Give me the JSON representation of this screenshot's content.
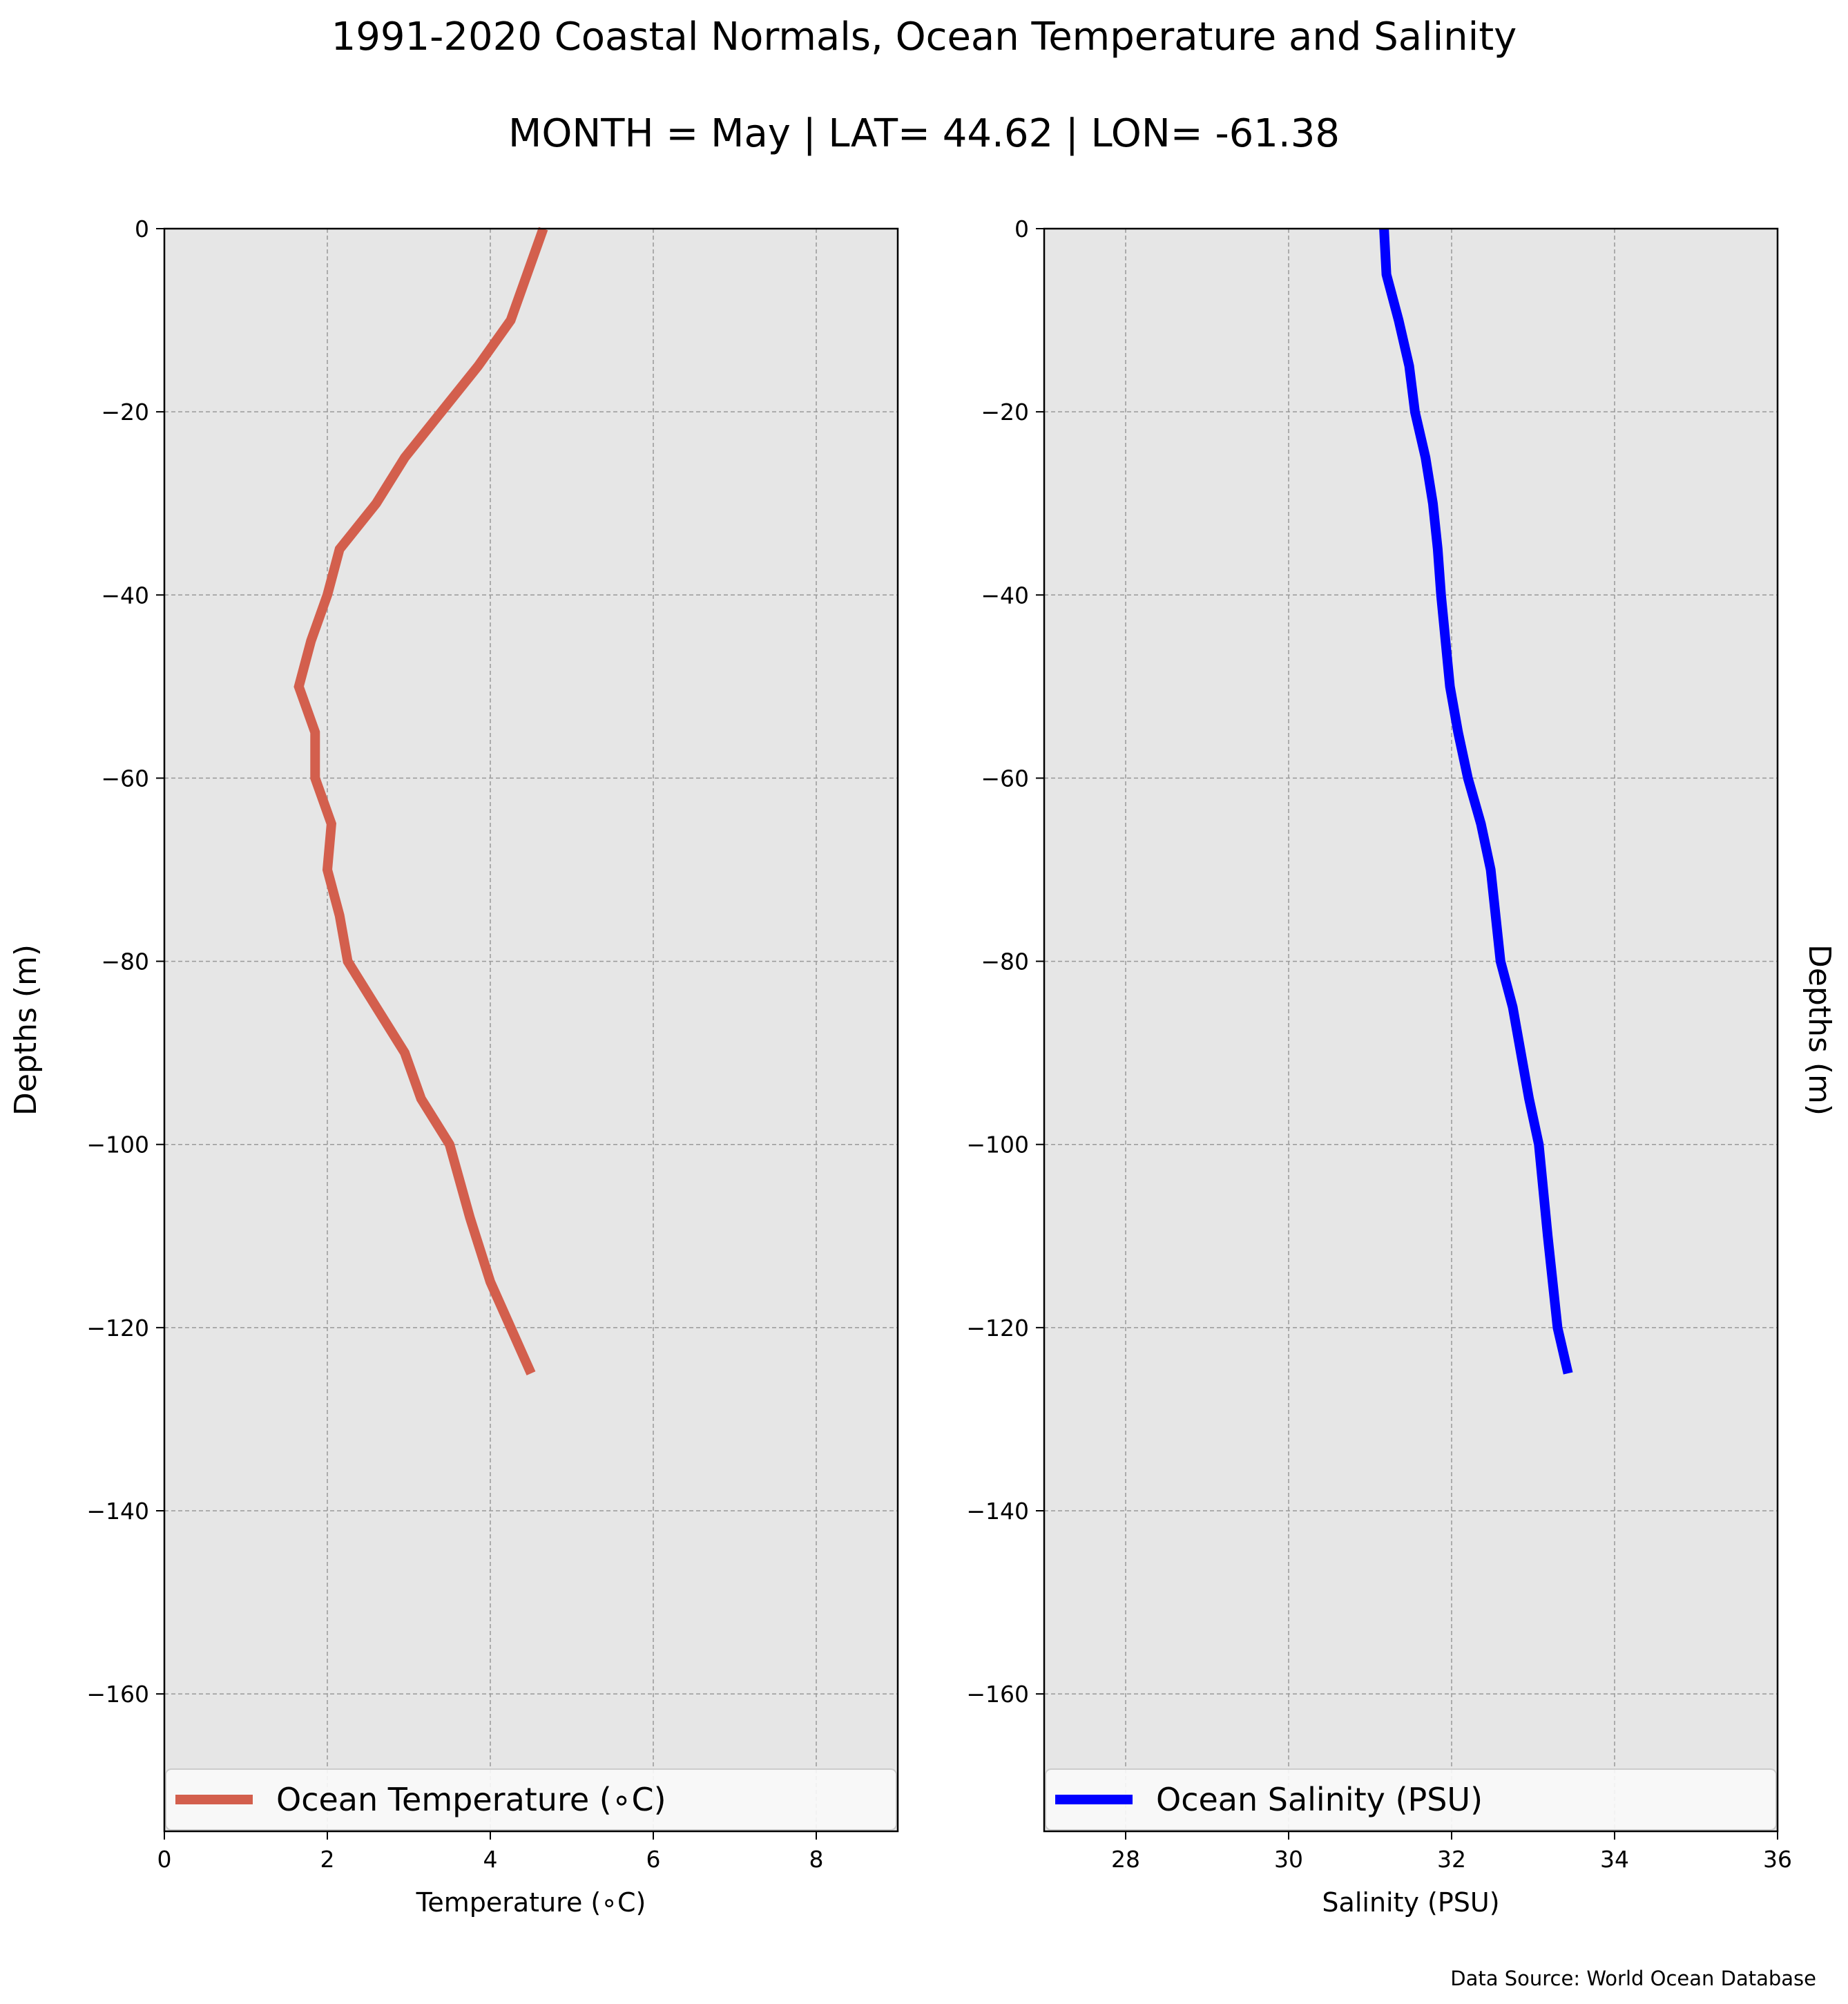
{
  "header": {
    "title": "1991-2020 Coastal Normals, Ocean Temperature and Salinity",
    "subtitle": "MONTH = May | LAT= 44.62 | LON= -61.38"
  },
  "footer": {
    "source": "Data Source: World Ocean Database"
  },
  "colors": {
    "plot_background": "#e6e6e6",
    "temperature_line": "#d35f4d",
    "salinity_line": "#0000ff",
    "grid": "#999999",
    "legend_background": "#f9f9f9"
  },
  "chart_data": [
    {
      "type": "line",
      "xlabel": "Temperature (∘C)",
      "ylabel": "Depths (m)",
      "xlim": [
        0,
        9
      ],
      "ylim": [
        -175,
        0
      ],
      "xticks": [
        0,
        2,
        4,
        6,
        8
      ],
      "yticks": [
        0,
        -20,
        -40,
        -60,
        -80,
        -100,
        -120,
        -140,
        -160
      ],
      "grid": true,
      "legend_position": "bottom",
      "series": [
        {
          "name": "Ocean Temperature (∘C)",
          "color": "#d35f4d",
          "x": [
            4.65,
            4.45,
            4.25,
            3.85,
            3.4,
            2.95,
            2.6,
            2.15,
            2.0,
            1.8,
            1.65,
            1.85,
            1.85,
            2.05,
            2.0,
            2.15,
            2.25,
            2.6,
            2.95,
            3.15,
            3.5,
            3.75,
            4.0,
            4.25,
            4.5
          ],
          "y": [
            0,
            -5,
            -10,
            -15,
            -20,
            -25,
            -30,
            -35,
            -40,
            -45,
            -50,
            -55,
            -60,
            -65,
            -70,
            -75,
            -80,
            -85,
            -90,
            -95,
            -100,
            -108,
            -115,
            -120,
            -125
          ]
        }
      ]
    },
    {
      "type": "line",
      "xlabel": "Salinity (PSU)",
      "ylabel": "Depths (m)",
      "xlim": [
        27,
        36
      ],
      "ylim": [
        -175,
        0
      ],
      "xticks": [
        28,
        30,
        32,
        34,
        36
      ],
      "yticks": [
        0,
        -20,
        -40,
        -60,
        -80,
        -100,
        -120,
        -140,
        -160
      ],
      "grid": true,
      "legend_position": "bottom",
      "series": [
        {
          "name": "Ocean Salinity (PSU)",
          "color": "#0000ff",
          "x": [
            31.17,
            31.2,
            31.35,
            31.48,
            31.55,
            31.68,
            31.77,
            31.83,
            31.87,
            31.98,
            32.08,
            32.2,
            32.36,
            32.48,
            32.6,
            32.75,
            32.85,
            32.95,
            33.07,
            33.18,
            33.3,
            33.43
          ],
          "y": [
            0,
            -5,
            -10,
            -15,
            -20,
            -25,
            -30,
            -35,
            -40,
            -50,
            -55,
            -60,
            -65,
            -70,
            -80,
            -85,
            -90,
            -95,
            -100,
            -110,
            -120,
            -125
          ]
        }
      ]
    }
  ]
}
